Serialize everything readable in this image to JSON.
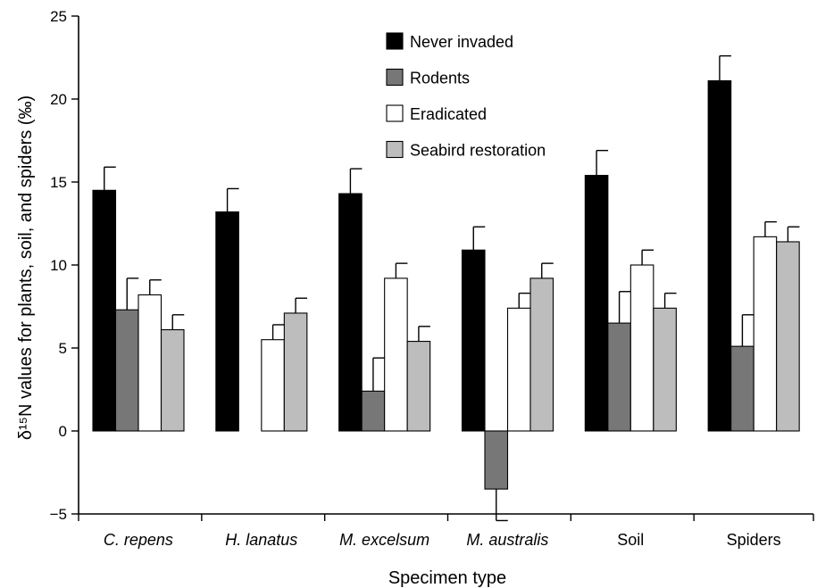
{
  "chart_data": {
    "type": "bar",
    "xlabel": "Specimen type",
    "ylabel": "δ¹⁵N values for plants, soil, and spiders (‰)",
    "ylim": [
      -5,
      25
    ],
    "yticks": [
      -5,
      0,
      5,
      10,
      15,
      20,
      25
    ],
    "grid": false,
    "legend_position": "top-center",
    "categories": [
      {
        "label": "C. repens",
        "italic": true
      },
      {
        "label": "H. lanatus",
        "italic": true
      },
      {
        "label": "M. excelsum",
        "italic": true
      },
      {
        "label": "M. australis",
        "italic": true
      },
      {
        "label": "Soil",
        "italic": false
      },
      {
        "label": "Spiders",
        "italic": false
      }
    ],
    "series": [
      {
        "name": "Never invaded",
        "color": "#000000",
        "values": [
          14.5,
          13.2,
          14.3,
          10.9,
          15.4,
          21.1
        ],
        "errors": [
          1.4,
          1.4,
          1.5,
          1.4,
          1.5,
          1.5
        ]
      },
      {
        "name": "Rodents",
        "color": "#777777",
        "values": [
          7.3,
          null,
          2.4,
          -3.5,
          6.5,
          5.1
        ],
        "errors": [
          1.9,
          null,
          2.0,
          1.9,
          1.9,
          1.9
        ]
      },
      {
        "name": "Eradicated",
        "color": "#ffffff",
        "values": [
          8.2,
          5.5,
          9.2,
          7.4,
          10.0,
          11.7
        ],
        "errors": [
          0.9,
          0.9,
          0.9,
          0.9,
          0.9,
          0.9
        ]
      },
      {
        "name": "Seabird restoration",
        "color": "#bdbdbd",
        "values": [
          6.1,
          7.1,
          5.4,
          9.2,
          7.4,
          11.4
        ],
        "errors": [
          0.9,
          0.9,
          0.9,
          0.9,
          0.9,
          0.9
        ]
      }
    ]
  }
}
